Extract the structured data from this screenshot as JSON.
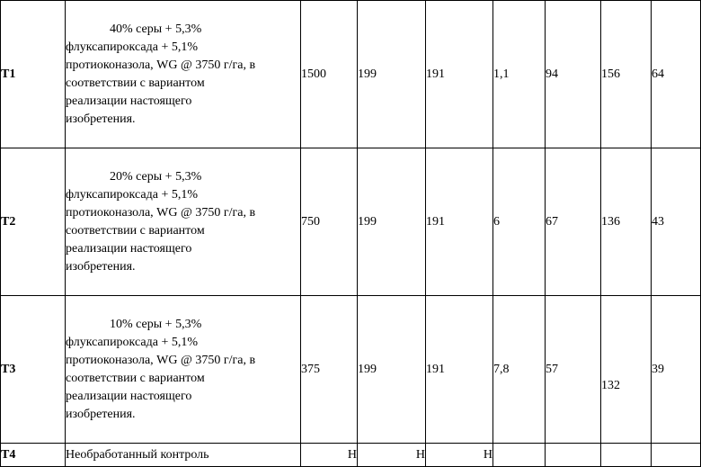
{
  "rows": [
    {
      "id": "T1",
      "desc_lines": [
        "40% серы + 5,3%",
        "флуксапироксада + 5,1%",
        "протиоконазола, WG @ 3750 г/га, в",
        "соответствии с вариантом",
        "реализации настоящего",
        "изобретения."
      ],
      "values": [
        "1500",
        "199",
        "191",
        "1,1",
        "94",
        "156",
        "64"
      ]
    },
    {
      "id": "T2",
      "desc_lines": [
        "20% серы + 5,3%",
        "флуксапироксада + 5,1%",
        "протиоконазола, WG @ 3750 г/га, в",
        "соответствии с вариантом",
        "реализации настоящего",
        "изобретения."
      ],
      "values": [
        "750",
        "199",
        "191",
        "6",
        "67",
        "136",
        "43"
      ]
    },
    {
      "id": "T3",
      "desc_lines": [
        "10% серы + 5,3%",
        "флуксапироксада + 5,1%",
        "протиоконазола, WG @ 3750 г/га, в",
        "соответствии с вариантом",
        "реализации настоящего",
        "изобретения."
      ],
      "values": [
        "375",
        "199",
        "191",
        "7,8",
        "57",
        "132",
        "39"
      ]
    },
    {
      "id": "T4",
      "desc": "Необработанный контроль",
      "values": [
        "Н",
        "Н",
        "Н",
        "",
        "",
        "",
        ""
      ]
    }
  ]
}
